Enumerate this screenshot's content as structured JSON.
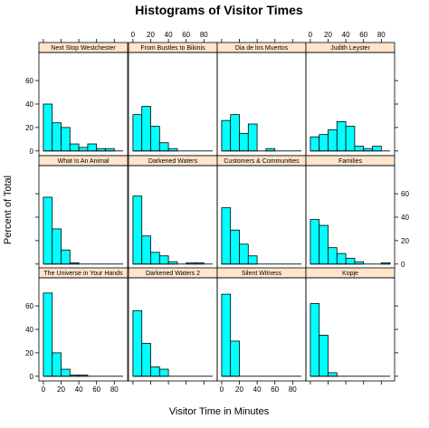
{
  "chart_data": {
    "type": "bar",
    "title": "Histograms of Visitor Times",
    "xlabel": "Visitor Time in Minutes",
    "ylabel": "Percent of Total",
    "xlim": [
      -5,
      95
    ],
    "ylim": [
      -4,
      84
    ],
    "x_ticks": [
      0,
      20,
      40,
      60,
      80
    ],
    "y_ticks": [
      0,
      20,
      40,
      60
    ],
    "bin_width": 10,
    "bin_starts": [
      0,
      10,
      20,
      30,
      40,
      50,
      60,
      70,
      80
    ],
    "bar_color": "#00ffff",
    "strip_color": "#ffe5cc",
    "layout": {
      "columns": 4,
      "rows": 3
    },
    "panels": [
      {
        "name": "Next Stop Westchester",
        "values": [
          40,
          24,
          20,
          6,
          3,
          6,
          2,
          2,
          0
        ]
      },
      {
        "name": "From Bustles to Bikinis",
        "values": [
          31,
          38,
          21,
          7,
          2,
          0,
          0,
          0,
          0
        ]
      },
      {
        "name": "Dia de los Muertos",
        "values": [
          26,
          31,
          15,
          23,
          0,
          2,
          0,
          0,
          0
        ]
      },
      {
        "name": "Judith Leyster",
        "values": [
          12,
          14,
          18,
          25,
          21,
          4,
          2,
          4,
          0
        ]
      },
      {
        "name": "What Is An Animal",
        "values": [
          57,
          30,
          12,
          1,
          0,
          0,
          0,
          0,
          0
        ]
      },
      {
        "name": "Darkened Waters",
        "values": [
          58,
          24,
          10,
          7,
          2,
          0,
          1,
          1,
          0
        ]
      },
      {
        "name": "Customers & Communities",
        "values": [
          48,
          29,
          17,
          7,
          0,
          0,
          0,
          0,
          0
        ]
      },
      {
        "name": "Families",
        "values": [
          38,
          33,
          14,
          9,
          5,
          2,
          0,
          0,
          1
        ]
      },
      {
        "name": "The Universe in Your Hands",
        "values": [
          71,
          20,
          6,
          1,
          1,
          0,
          0,
          0,
          0
        ]
      },
      {
        "name": "Darkened Waters 2",
        "values": [
          56,
          28,
          8,
          6,
          0,
          0,
          0,
          0,
          0
        ]
      },
      {
        "name": "Silent Witness",
        "values": [
          70,
          30,
          0,
          0,
          0,
          0,
          0,
          0,
          0
        ]
      },
      {
        "name": "Kopje",
        "values": [
          62,
          35,
          3,
          0,
          0,
          0,
          0,
          0,
          0
        ]
      }
    ]
  }
}
